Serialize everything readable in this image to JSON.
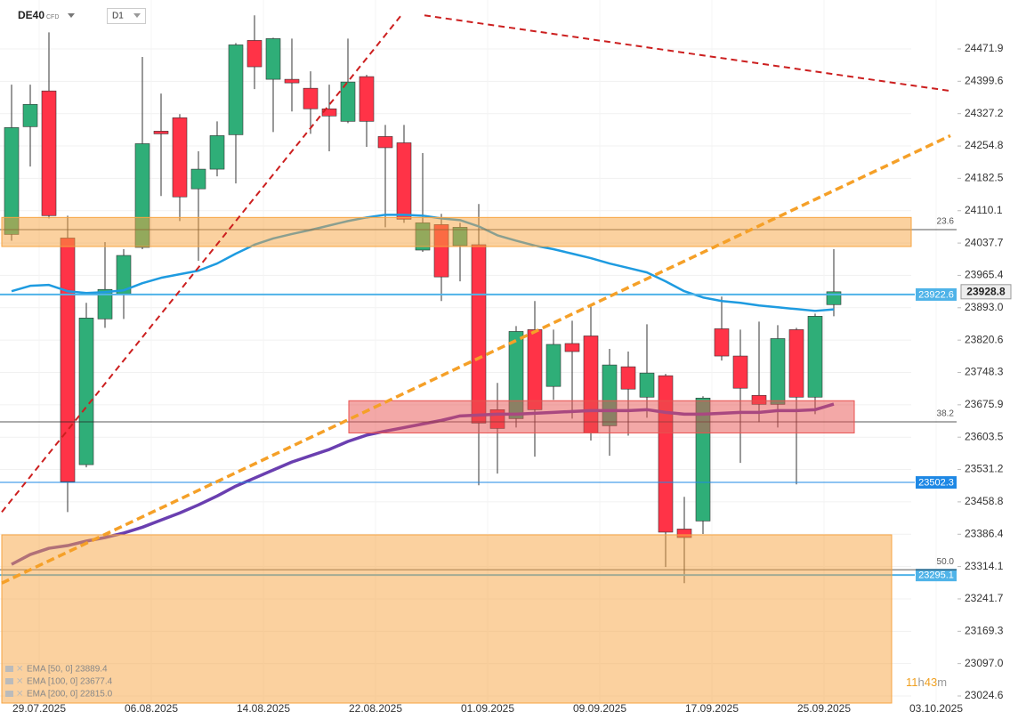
{
  "chart_data": {
    "type": "candlestick",
    "symbol": "DE40",
    "instrument": "CFD",
    "timeframe": "D1",
    "categories": [
      null,
      "29.07.2025",
      null,
      null,
      null,
      null,
      null,
      "06.08.2025",
      null,
      null,
      null,
      null,
      null,
      "14.08.2025",
      null,
      null,
      null,
      null,
      null,
      "22.08.2025",
      null,
      null,
      null,
      null,
      null,
      "01.09.2025",
      null,
      null,
      null,
      null,
      null,
      "09.09.2025",
      null,
      null,
      null,
      null,
      null,
      "17.09.2025",
      null,
      null,
      null,
      null,
      null,
      "25.09.2025",
      null,
      null,
      null,
      null,
      null,
      "03.10.2025"
    ],
    "open": [
      24057,
      24298,
      24378,
      24049,
      23542,
      23868,
      23924,
      24028,
      24288,
      24318,
      24159,
      24203,
      24280,
      24491,
      24404,
      24404,
      24384,
      24338,
      24310,
      24410,
      24276,
      24262,
      24022,
      24079,
      24032,
      24034,
      23665,
      23645,
      23844,
      23717,
      23813,
      23830,
      23629,
      23761,
      23693,
      23741,
      23398,
      23416,
      23846,
      23785,
      23697,
      23677,
      23844,
      23693,
      23900,
      null,
      null,
      null,
      null,
      null
    ],
    "high": [
      24392,
      24392,
      24509,
      24099,
      23904,
      24040,
      24024,
      24454,
      24372,
      24326,
      24243,
      24310,
      24485,
      24547,
      24497,
      24495,
      24422,
      24392,
      24495,
      24414,
      24302,
      24302,
      24239,
      24103,
      24083,
      24125,
      23725,
      23852,
      23908,
      23844,
      23864,
      23896,
      23801,
      23795,
      23856,
      23745,
      23470,
      23695,
      23918,
      23844,
      23862,
      23854,
      23848,
      23880,
      24024,
      null,
      null,
      null,
      null,
      null
    ],
    "low": [
      24043,
      24209,
      24093,
      23436,
      23536,
      23848,
      23868,
      24024,
      24143,
      24087,
      23998,
      24187,
      24171,
      24382,
      24286,
      24332,
      24282,
      24243,
      24306,
      24253,
      24073,
      24083,
      24018,
      23908,
      23952,
      23496,
      23522,
      23625,
      23560,
      23687,
      23645,
      23596,
      23562,
      23607,
      23647,
      23313,
      23277,
      23387,
      23775,
      23546,
      23637,
      23625,
      23498,
      23655,
      23874,
      null,
      null,
      null,
      null,
      null
    ],
    "close": [
      24296,
      24348,
      24099,
      23504,
      23870,
      23934,
      24010,
      24260,
      24282,
      24141,
      24203,
      24278,
      24481,
      24432,
      24495,
      24396,
      24338,
      24322,
      24398,
      24310,
      24251,
      24091,
      24083,
      23962,
      24073,
      23635,
      23623,
      23840,
      23665,
      23811,
      23795,
      23613,
      23765,
      23711,
      23747,
      23391,
      23379,
      23691,
      23785,
      23713,
      23677,
      23824,
      23693,
      23874,
      23928.8,
      null,
      null,
      null,
      null,
      null
    ],
    "up_color": "#2fae78",
    "down_color": "#ff3347",
    "series": [
      {
        "name": "EMA [50, 0] 23889.4",
        "color": "#1e9be0",
        "values": [
          23930,
          23942,
          23944,
          23930,
          23926,
          23928,
          23932,
          23948,
          23960,
          23968,
          23976,
          23992,
          24014,
          24034,
          24048,
          24058,
          24067,
          24077,
          24087,
          24095,
          24101,
          24101,
          24099,
          24093,
          24089,
          24075,
          24055,
          24043,
          24032,
          24024,
          24014,
          24004,
          23992,
          23982,
          23972,
          23952,
          23930,
          23916,
          23908,
          23904,
          23898,
          23894,
          23890,
          23886,
          23889.4,
          null,
          null,
          null,
          null,
          null
        ]
      },
      {
        "name": "EMA [100, 0] 23677.4",
        "color": "#6a3fb0",
        "values": [
          23319,
          23341,
          23355,
          23361,
          23371,
          23379,
          23389,
          23402,
          23418,
          23434,
          23452,
          23472,
          23494,
          23512,
          23530,
          23548,
          23562,
          23576,
          23594,
          23608,
          23617,
          23625,
          23633,
          23641,
          23651,
          23653,
          23655,
          23655,
          23657,
          23659,
          23661,
          23663,
          23663,
          23663,
          23665,
          23659,
          23655,
          23655,
          23657,
          23659,
          23659,
          23663,
          23663,
          23665,
          23677.4,
          null,
          null,
          null,
          null,
          null
        ]
      },
      {
        "name": "EMA [200, 0] 22815.0",
        "color": "#c2185b"
      }
    ],
    "ylim": [
      23008.7,
      24581.4
    ],
    "yticks": [
      24471.9,
      24399.6,
      24327.2,
      24254.8,
      24182.5,
      24110.1,
      24037.7,
      23965.4,
      {
        "value": 23893,
        "label": "23893.0"
      },
      23820.6,
      23748.3,
      23675.9,
      23603.5,
      23531.2,
      23458.8,
      23386.4,
      23314.1,
      23241.7,
      23169.3,
      {
        "value": 23097,
        "label": "23097.0"
      },
      23024.6
    ],
    "grid": true,
    "levels": [
      {
        "price": 23922.6,
        "color": "#4fb3e8"
      },
      {
        "price": 23502.3,
        "color": "#1e88e5"
      },
      {
        "price": 23295.1,
        "color": "#4fb3e8"
      }
    ],
    "fibonacci": [
      {
        "label": "23.6",
        "price": 24067.8
      },
      {
        "label": "38.2",
        "price": 23637.8
      },
      {
        "label": "50.0",
        "price": 23307.0
      }
    ],
    "zones": [
      {
        "low": 24030,
        "high": 24095,
        "color": "#f7a440"
      },
      {
        "low": 23613,
        "high": 23685,
        "color": "#e8514f"
      },
      {
        "low": 23008.7,
        "high": 23385,
        "color": "#f7a440"
      }
    ],
    "trendlines": [
      {
        "start": 23436,
        "end": 24545,
        "color": "#cc1f1f"
      },
      {
        "start": 24547,
        "end": 24378,
        "color": "#cc1f1f"
      },
      {
        "start": 23277,
        "end": 24278,
        "color": "#f5a028"
      }
    ],
    "countdown": [
      "11",
      "h",
      "43",
      "m"
    ]
  }
}
